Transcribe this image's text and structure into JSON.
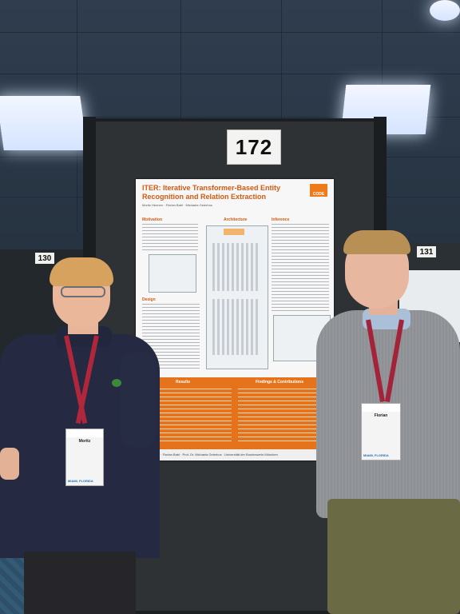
{
  "scene": {
    "booth_number": "172",
    "left_booth_number": "130",
    "right_booth_number": "131"
  },
  "poster": {
    "title": "ITER: Iterative Transformer-Based Entity Recognition and Relation Extraction",
    "authors": "Moritz Hennen · Florian Babl · Michaela Geierhos",
    "logo_text": "CODE",
    "section_heads": [
      "Motivation",
      "Architecture",
      "Inference",
      "Design",
      "Results",
      "Findings & Contributions"
    ],
    "footer": "Moritz Hennen · Florian Babl · Prof. Dr. Michaela Geierhos · Universität der Bundeswehr München"
  },
  "badges": {
    "left": {
      "name": "Moritz",
      "foot": "MIAMI, FLORIDA"
    },
    "right": {
      "name": "Florian",
      "foot": "MIAMI, FLORIDA"
    }
  },
  "colors": {
    "poster_accent": "#e5731c",
    "board": "#2e3234"
  }
}
